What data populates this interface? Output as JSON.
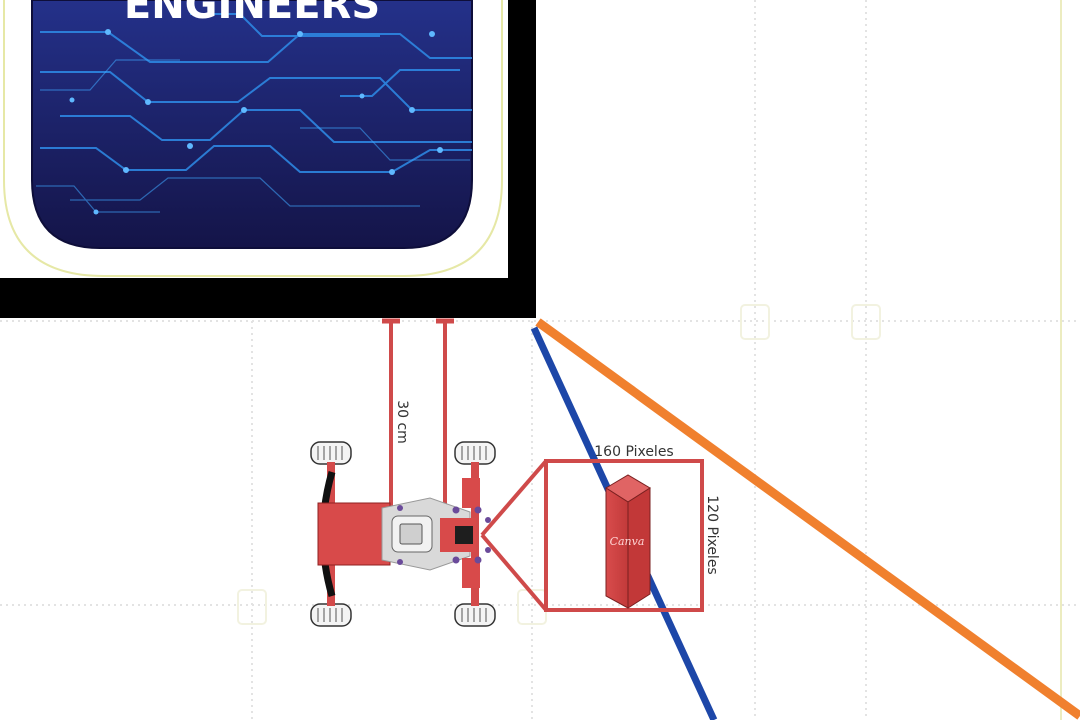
{
  "banner": {
    "title": "ENGINEERS"
  },
  "measurements": {
    "wall_distance": "30 cm",
    "frame_width": "160 Pixeles",
    "frame_height": "120 Pixeles"
  },
  "obstacle": {
    "brand": "Canva"
  },
  "colors": {
    "frame": "#cf4a4a",
    "obstacle": "#cf4444",
    "line_orange": "#f0802e",
    "line_blue": "#1d47a8",
    "banner_bg": "#1a1a5e",
    "border": "#000000"
  }
}
